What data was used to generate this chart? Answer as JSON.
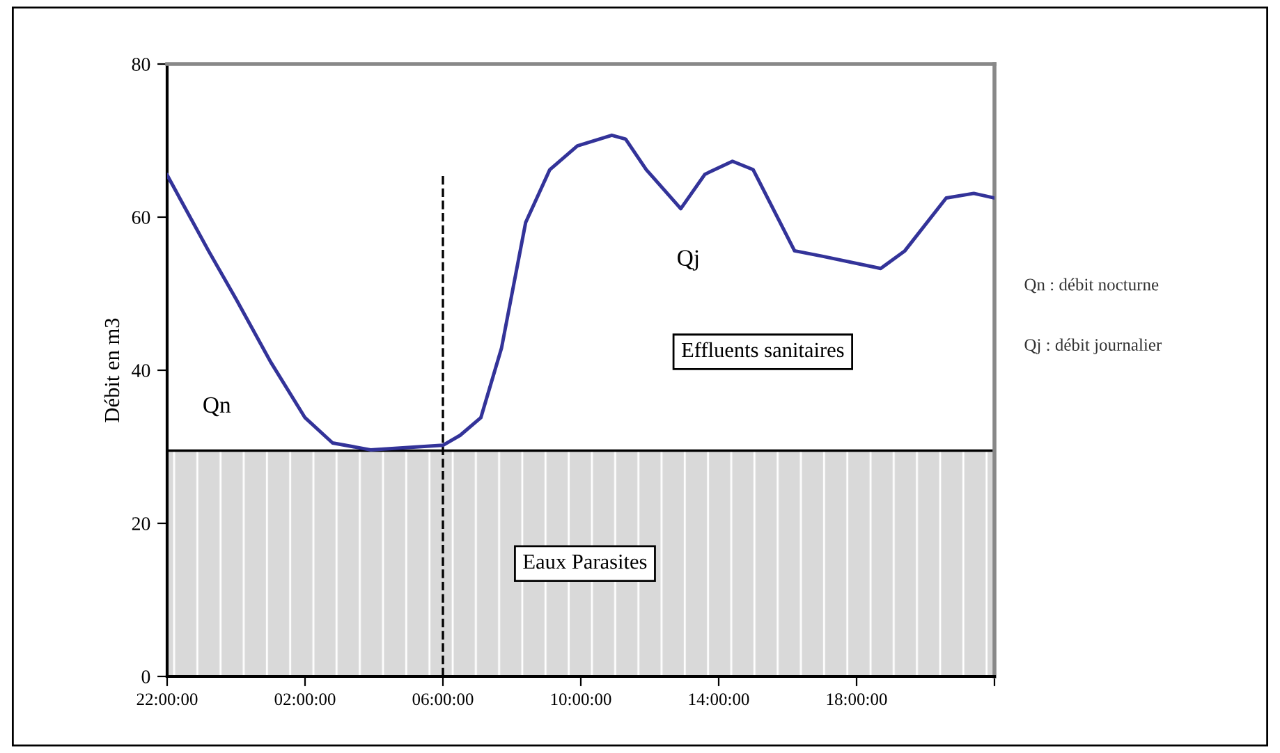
{
  "chart_data": {
    "type": "line",
    "ylabel": "Débit en m3",
    "series": [
      {
        "color": "#333399",
        "x": [
          "2000-01-01T22:00",
          "2000-01-01T23:12",
          "2000-01-02T00:00",
          "2000-01-02T01:00",
          "2000-01-02T02:00",
          "2000-01-02T02:48",
          "2000-01-02T03:54",
          "2000-01-02T05:18",
          "2000-01-02T06:00",
          "2000-01-02T06:30",
          "2000-01-02T07:06",
          "2000-01-02T07:42",
          "2000-01-02T08:24",
          "2000-01-02T09:06",
          "2000-01-02T09:54",
          "2000-01-02T10:54",
          "2000-01-02T11:18",
          "2000-01-02T11:54",
          "2000-01-02T12:54",
          "2000-01-02T13:36",
          "2000-01-02T14:24",
          "2000-01-02T15:00",
          "2000-01-02T16:12",
          "2000-01-02T17:00",
          "2000-01-02T18:42",
          "2000-01-02T19:24",
          "2000-01-02T20:36",
          "2000-01-02T21:24",
          "2000-01-02T22:00"
        ],
        "values": [
          65.5,
          55.6,
          49.3,
          41.1,
          33.8,
          30.5,
          29.6,
          30.0,
          30.2,
          31.5,
          33.8,
          42.9,
          59.3,
          66.2,
          69.3,
          70.7,
          70.2,
          66.2,
          61.1,
          65.6,
          67.3,
          66.2,
          55.6,
          54.9,
          53.3,
          55.6,
          62.5,
          63.1,
          62.5
        ]
      }
    ],
    "xlim": [
      "2000-01-01T22:00",
      "2000-01-02T22:00"
    ],
    "ylim": [
      0,
      80
    ],
    "xticks": [
      {
        "value": "2000-01-01T22:00",
        "label": "22:00:00"
      },
      {
        "value": "2000-01-02T02:00",
        "label": "02:00:00"
      },
      {
        "value": "2000-01-02T06:00",
        "label": "06:00:00"
      },
      {
        "value": "2000-01-02T10:00",
        "label": "10:00:00"
      },
      {
        "value": "2000-01-02T14:00",
        "label": "14:00:00"
      },
      {
        "value": "2000-01-02T18:00",
        "label": "18:00:00"
      },
      {
        "value": "2000-01-02T22:00",
        "label": null
      }
    ],
    "yticks": [
      0,
      20,
      40,
      60,
      80
    ],
    "bands": [
      {
        "axis": "y",
        "from": 0,
        "to": 29.5,
        "label": "Eaux Parasites",
        "color": "#d9d9d9"
      }
    ],
    "ref_lines": [
      {
        "axis": "x",
        "value": "2000-01-02T06:00",
        "line_style": "dashed",
        "color": "#000000"
      },
      {
        "axis": "y",
        "value": 29.5,
        "line_style": "solid",
        "color": "#000000"
      }
    ],
    "annotations": [
      "Qn",
      "Qj",
      "Effluents sanitaires",
      "Qn : débit nocturne",
      "Qj : débit journalier"
    ],
    "grid": false,
    "legend": false,
    "marker": "none",
    "line_style": "solid"
  }
}
